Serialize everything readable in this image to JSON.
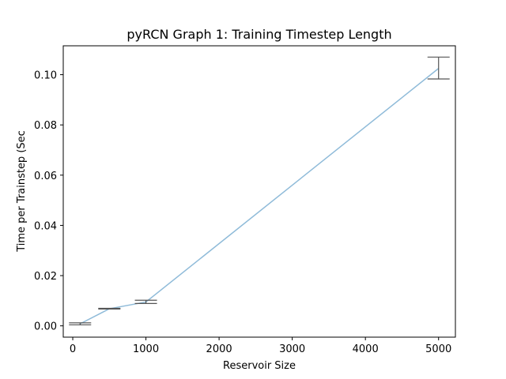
{
  "chart_data": {
    "type": "line",
    "title": "pyRCN Graph 1: Training Timestep Length",
    "xlabel": "Reservoir Size",
    "ylabel": "Time per Trainstep (Sec",
    "xlim": [
      -130,
      5230
    ],
    "ylim": [
      -0.0045,
      0.1115
    ],
    "xticks": [
      0,
      1000,
      2000,
      3000,
      4000,
      5000
    ],
    "xtick_labels": [
      "0",
      "1000",
      "2000",
      "3000",
      "4000",
      "5000"
    ],
    "yticks": [
      0.0,
      0.02,
      0.04,
      0.06,
      0.08,
      0.1
    ],
    "ytick_labels": [
      "0.00",
      "0.02",
      "0.04",
      "0.06",
      "0.08",
      "0.10"
    ],
    "grid": false,
    "series": [
      {
        "x": [
          100,
          500,
          1000,
          5000
        ],
        "y": [
          0.0008,
          0.0068,
          0.0095,
          0.1025
        ],
        "err_low": [
          0.0004,
          0.0067,
          0.0089,
          0.0983
        ],
        "err_high": [
          0.0012,
          0.007,
          0.0102,
          0.107
        ],
        "color": "#1f77b4"
      }
    ],
    "errorbar_color": "#555555"
  }
}
